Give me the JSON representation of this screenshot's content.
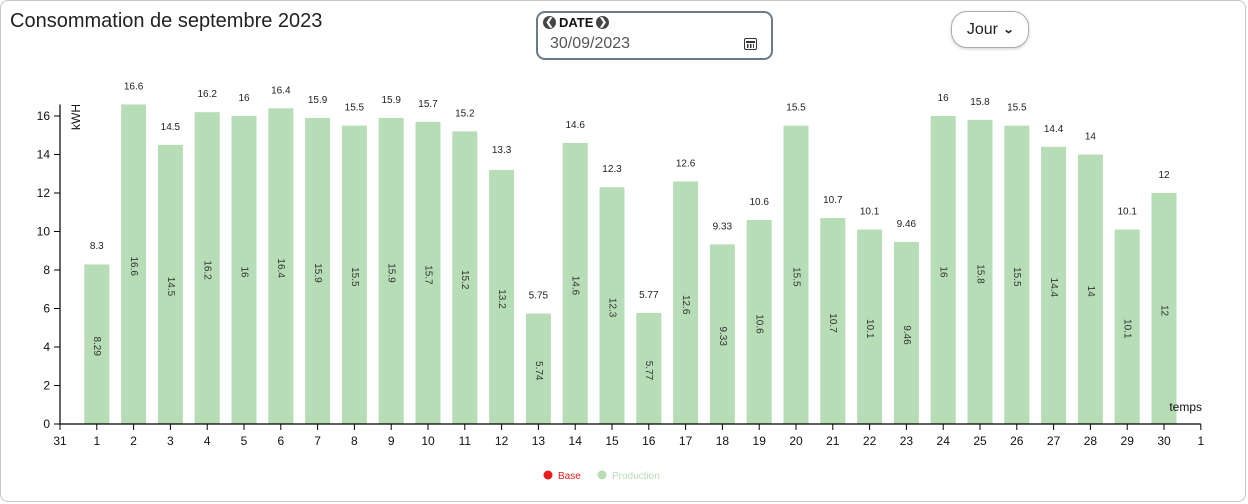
{
  "header": {
    "title": "Consommation de septembre 2023"
  },
  "date_picker": {
    "label": "DATE",
    "value": "30/09/2023"
  },
  "period_select": {
    "value": "Jour"
  },
  "chart_data": {
    "type": "bar",
    "title": "",
    "ylabel": "kWH",
    "xlabel": "temps",
    "ylim": [
      0,
      16.6
    ],
    "yticks": [
      0,
      2,
      4,
      6,
      8,
      10,
      12,
      14,
      16
    ],
    "xticks": [
      "31",
      "1",
      "2",
      "3",
      "4",
      "5",
      "6",
      "7",
      "8",
      "9",
      "10",
      "11",
      "12",
      "13",
      "14",
      "15",
      "16",
      "17",
      "18",
      "19",
      "20",
      "21",
      "22",
      "23",
      "24",
      "25",
      "26",
      "27",
      "28",
      "29",
      "30",
      "1"
    ],
    "categories": [
      "1",
      "2",
      "3",
      "4",
      "5",
      "6",
      "7",
      "8",
      "9",
      "10",
      "11",
      "12",
      "13",
      "14",
      "15",
      "16",
      "17",
      "18",
      "19",
      "20",
      "21",
      "22",
      "23",
      "24",
      "25",
      "26",
      "27",
      "28",
      "29",
      "30"
    ],
    "series": [
      {
        "name": "Base",
        "color": "#e81c1c",
        "values": [
          "8.3",
          "16.6",
          "14.5",
          "16.2",
          "16",
          "16.4",
          "15.9",
          "15.5",
          "15.9",
          "15.7",
          "15.2",
          "13.3",
          "5.75",
          "14.6",
          "12.3",
          "5.77",
          "12.6",
          "9.33",
          "10.6",
          "15.5",
          "10.7",
          "10.1",
          "9.46",
          "16",
          "15.8",
          "15.5",
          "14.4",
          "14",
          "10.1",
          "12"
        ]
      },
      {
        "name": "Production",
        "color": "#b7ddb7",
        "values": [
          "8.29",
          "16.6",
          "14.5",
          "16.2",
          "16",
          "16.4",
          "15.9",
          "15.5",
          "15.9",
          "15.7",
          "15.2",
          "13.2",
          "5.74",
          "14.6",
          "12.3",
          "5.77",
          "12.6",
          "9.33",
          "10.6",
          "15.5",
          "10.7",
          "10.1",
          "9.46",
          "16",
          "15.8",
          "15.5",
          "14.4",
          "14",
          "10.1",
          "12"
        ]
      }
    ],
    "legend_position": "bottom-center"
  }
}
